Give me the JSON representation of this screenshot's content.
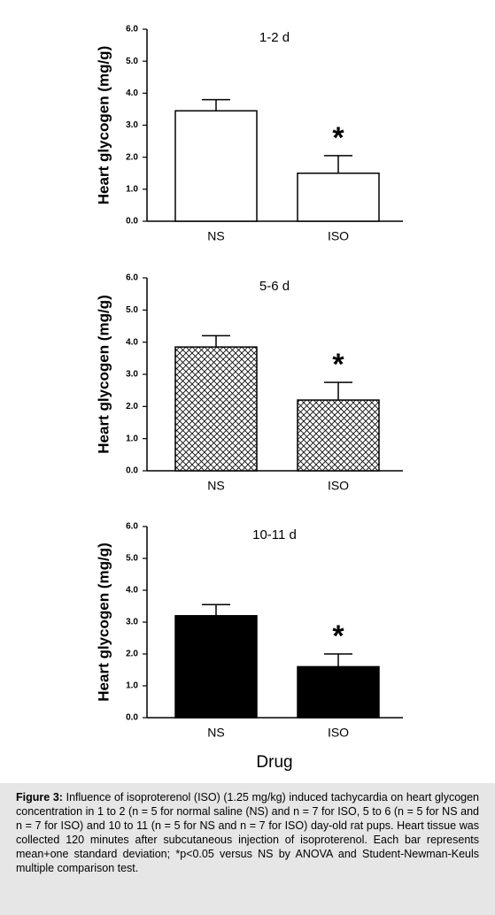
{
  "chart_data": [
    {
      "type": "bar",
      "title": "1-2 d",
      "ylabel": "Heart glycogen (mg/g)",
      "categories": [
        "NS",
        "ISO"
      ],
      "values": [
        3.45,
        1.5
      ],
      "errors": [
        0.35,
        0.55
      ],
      "significance": [
        null,
        "*"
      ],
      "color": "#ffffff",
      "hatch": false,
      "ylim": [
        0,
        6
      ],
      "yticks": [
        {
          "value": 0,
          "label": "0.0"
        },
        {
          "value": 1,
          "label": "1.0"
        },
        {
          "value": 2,
          "label": "2.0"
        },
        {
          "value": 3,
          "label": "3.0"
        },
        {
          "value": 4,
          "label": "4.0"
        },
        {
          "value": 5,
          "label": "5.0"
        },
        {
          "value": 6,
          "label": "6.0"
        }
      ]
    },
    {
      "type": "bar",
      "title": "5-6 d",
      "ylabel": "Heart glycogen (mg/g)",
      "categories": [
        "NS",
        "ISO"
      ],
      "values": [
        3.85,
        2.2
      ],
      "errors": [
        0.35,
        0.55
      ],
      "significance": [
        null,
        "*"
      ],
      "color": "#ffffff",
      "hatch": true,
      "ylim": [
        0,
        6
      ],
      "yticks": [
        {
          "value": 0,
          "label": "0.0"
        },
        {
          "value": 1,
          "label": "1.0"
        },
        {
          "value": 2,
          "label": "2.0"
        },
        {
          "value": 3,
          "label": "3.0"
        },
        {
          "value": 4,
          "label": "4.0"
        },
        {
          "value": 5,
          "label": "5.0"
        },
        {
          "value": 6,
          "label": "6.0"
        }
      ]
    },
    {
      "type": "bar",
      "title": "10-11  d",
      "ylabel": "Heart glycogen (mg/g)",
      "xlabel": "Drug",
      "categories": [
        "NS",
        "ISO"
      ],
      "values": [
        3.2,
        1.6
      ],
      "errors": [
        0.35,
        0.4
      ],
      "significance": [
        null,
        "*"
      ],
      "color": "#000000",
      "hatch": false,
      "ylim": [
        0,
        6
      ],
      "yticks": [
        {
          "value": 0,
          "label": "0.0"
        },
        {
          "value": 1,
          "label": "1.0"
        },
        {
          "value": 2,
          "label": "2.0"
        },
        {
          "value": 3,
          "label": "3.0"
        },
        {
          "value": 4,
          "label": "4.0"
        },
        {
          "value": 5,
          "label": "5.0"
        },
        {
          "value": 6,
          "label": "6.0"
        }
      ]
    }
  ],
  "caption": {
    "label": "Figure 3:",
    "text": "Influence of isoproterenol (ISO) (1.25 mg/kg) induced tachycardia on heart glycogen concentration in 1 to 2 (n = 5 for normal saline (NS) and n = 7 for ISO, 5 to 6 (n = 5 for NS and n = 7 for ISO) and 10 to 11 (n = 5 for NS and n = 7 for ISO) day-old rat pups.  Heart tissue was collected 120 minutes after subcutaneous injection of isoproterenol.  Each bar represents mean+one standard deviation; *p<0.05 versus NS by ANOVA and Student-Newman-Keuls multiple comparison test."
  }
}
